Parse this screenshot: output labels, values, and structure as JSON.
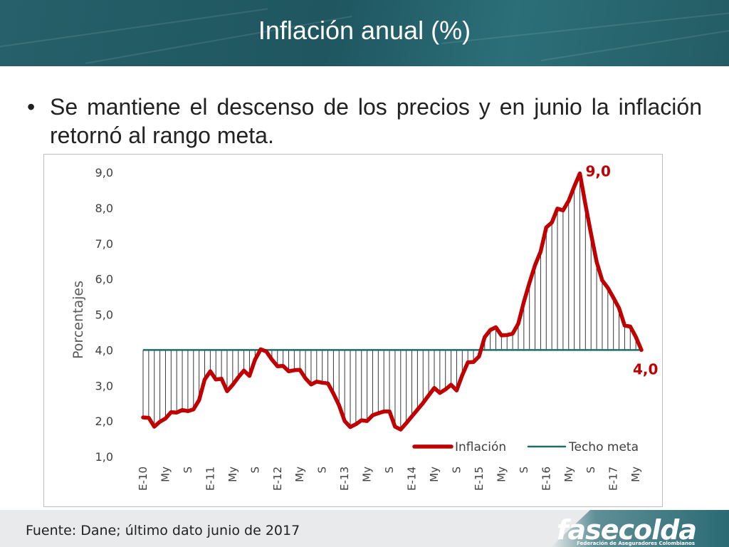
{
  "header": {
    "title": "Inflación anual (%)"
  },
  "bullet": {
    "marker": "•",
    "text": "Se mantiene el descenso de los precios y en junio la inflación retornó al rango meta."
  },
  "footer": {
    "source": "Fuente: Dane; último dato junio de 2017",
    "logo": "fasecolda",
    "logo_subtitle": "Federación de Aseguradores Colombianos"
  },
  "colors": {
    "inflation": "#c00000",
    "target": "#1e6b6b",
    "header": "#24616a"
  },
  "chart_data": {
    "type": "line",
    "ylabel": "Porcentajes",
    "xlabel": "",
    "ylim": [
      1.0,
      9.0
    ],
    "y_ticks": [
      "1,0",
      "2,0",
      "3,0",
      "4,0",
      "5,0",
      "6,0",
      "7,0",
      "8,0",
      "9,0"
    ],
    "x_tick_labels": [
      "E-10",
      "My",
      "S",
      "E-11",
      "My",
      "S",
      "E-12",
      "My",
      "S",
      "E-13",
      "My",
      "S",
      "E-14",
      "My",
      "S",
      "E-15",
      "My",
      "S",
      "E-16",
      "My",
      "S",
      "E-17",
      "My"
    ],
    "legend": {
      "position": "bottom-right"
    },
    "annotations": [
      {
        "text": "9,0",
        "series": "Inflación",
        "point": "max"
      },
      {
        "text": "4,0",
        "series": "Inflación",
        "point": "last"
      }
    ],
    "x": [
      "2010-01",
      "2010-02",
      "2010-03",
      "2010-04",
      "2010-05",
      "2010-06",
      "2010-07",
      "2010-08",
      "2010-09",
      "2010-10",
      "2010-11",
      "2010-12",
      "2011-01",
      "2011-02",
      "2011-03",
      "2011-04",
      "2011-05",
      "2011-06",
      "2011-07",
      "2011-08",
      "2011-09",
      "2011-10",
      "2011-11",
      "2011-12",
      "2012-01",
      "2012-02",
      "2012-03",
      "2012-04",
      "2012-05",
      "2012-06",
      "2012-07",
      "2012-08",
      "2012-09",
      "2012-10",
      "2012-11",
      "2012-12",
      "2013-01",
      "2013-02",
      "2013-03",
      "2013-04",
      "2013-05",
      "2013-06",
      "2013-07",
      "2013-08",
      "2013-09",
      "2013-10",
      "2013-11",
      "2013-12",
      "2014-01",
      "2014-02",
      "2014-03",
      "2014-04",
      "2014-05",
      "2014-06",
      "2014-07",
      "2014-08",
      "2014-09",
      "2014-10",
      "2014-11",
      "2014-12",
      "2015-01",
      "2015-02",
      "2015-03",
      "2015-04",
      "2015-05",
      "2015-06",
      "2015-07",
      "2015-08",
      "2015-09",
      "2015-10",
      "2015-11",
      "2015-12",
      "2016-01",
      "2016-02",
      "2016-03",
      "2016-04",
      "2016-05",
      "2016-06",
      "2016-07",
      "2016-08",
      "2016-09",
      "2016-10",
      "2016-11",
      "2016-12",
      "2017-01",
      "2017-02",
      "2017-03",
      "2017-04",
      "2017-05",
      "2017-06"
    ],
    "series": [
      {
        "name": "Inflación",
        "values": [
          2.1,
          2.09,
          1.84,
          1.98,
          2.07,
          2.25,
          2.24,
          2.31,
          2.28,
          2.33,
          2.59,
          3.17,
          3.4,
          3.17,
          3.19,
          2.84,
          3.02,
          3.23,
          3.42,
          3.27,
          3.73,
          4.02,
          3.96,
          3.73,
          3.54,
          3.55,
          3.4,
          3.43,
          3.44,
          3.2,
          3.03,
          3.11,
          3.08,
          3.06,
          2.77,
          2.44,
          2.0,
          1.83,
          1.91,
          2.02,
          2.0,
          2.16,
          2.22,
          2.27,
          2.27,
          1.84,
          1.76,
          1.94,
          2.13,
          2.32,
          2.51,
          2.72,
          2.93,
          2.79,
          2.89,
          3.02,
          2.86,
          3.29,
          3.65,
          3.66,
          3.82,
          4.36,
          4.56,
          4.64,
          4.41,
          4.42,
          4.46,
          4.74,
          5.35,
          5.89,
          6.39,
          6.77,
          7.45,
          7.59,
          7.98,
          7.93,
          8.2,
          8.6,
          8.97,
          8.1,
          7.27,
          6.48,
          5.96,
          5.75,
          5.47,
          5.18,
          4.69,
          4.66,
          4.37,
          4.0
        ]
      },
      {
        "name": "Techo meta",
        "values": [
          4,
          4,
          4,
          4,
          4,
          4,
          4,
          4,
          4,
          4,
          4,
          4,
          4,
          4,
          4,
          4,
          4,
          4,
          4,
          4,
          4,
          4,
          4,
          4,
          4,
          4,
          4,
          4,
          4,
          4,
          4,
          4,
          4,
          4,
          4,
          4,
          4,
          4,
          4,
          4,
          4,
          4,
          4,
          4,
          4,
          4,
          4,
          4,
          4,
          4,
          4,
          4,
          4,
          4,
          4,
          4,
          4,
          4,
          4,
          4,
          4,
          4,
          4,
          4,
          4,
          4,
          4,
          4,
          4,
          4,
          4,
          4,
          4,
          4,
          4,
          4,
          4,
          4,
          4,
          4,
          4,
          4,
          4,
          4,
          4,
          4,
          4,
          4,
          4,
          4
        ]
      }
    ]
  }
}
